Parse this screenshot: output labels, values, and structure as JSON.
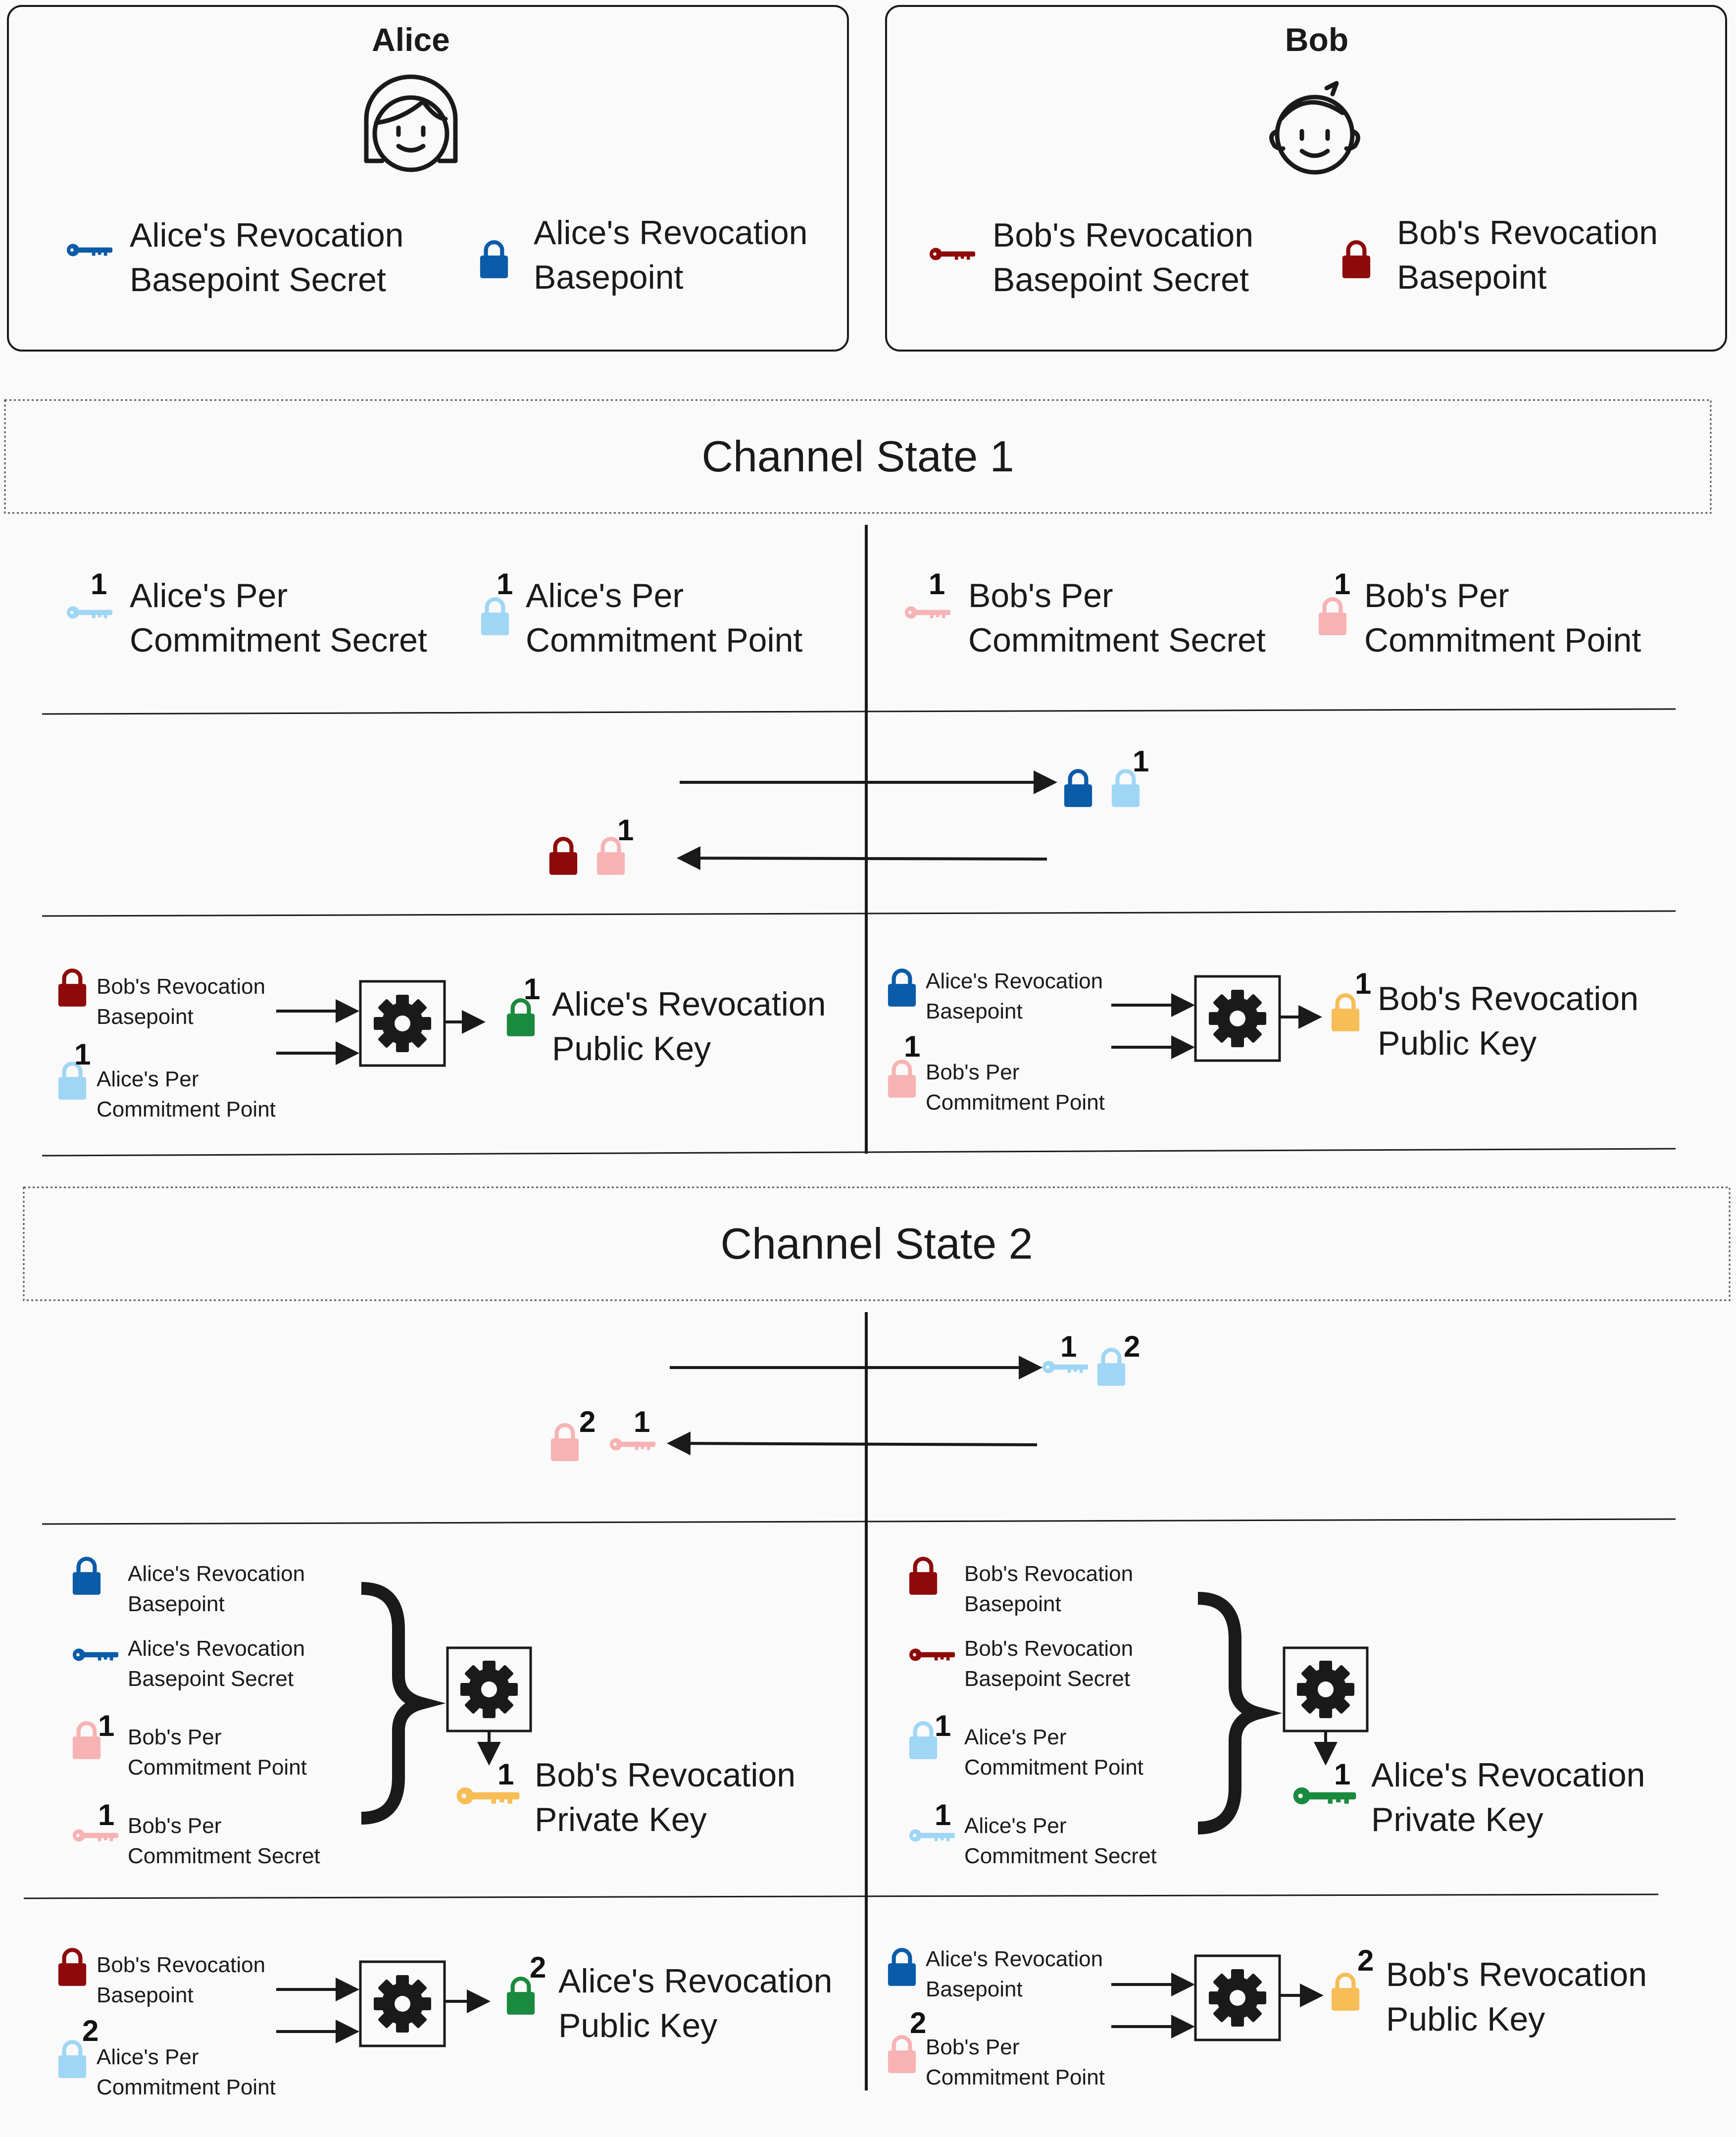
{
  "colors": {
    "alice_blue": "#0a5ba8",
    "alice_light": "#9fd6f5",
    "bob_red": "#8e0a0a",
    "bob_light": "#f7b3b3",
    "green": "#1a8a3e",
    "orange": "#f7bd56",
    "line": "#1a1a1a"
  },
  "alice": {
    "name": "Alice",
    "secret_label": "Alice's Revocation\nBasepoint Secret",
    "basepoint_label": "Alice's Revocation\nBasepoint"
  },
  "bob": {
    "name": "Bob",
    "secret_label": "Bob's Revocation\nBasepoint Secret",
    "basepoint_label": "Bob's Revocation\nBasepoint"
  },
  "state1": {
    "title": "Channel State 1",
    "alice_secret": {
      "num": "1",
      "label": "Alice's Per\nCommitment Secret"
    },
    "alice_point": {
      "num": "1",
      "label": "Alice's Per\nCommitment Point"
    },
    "bob_secret": {
      "num": "1",
      "label": "Bob's Per\nCommitment Secret"
    },
    "bob_point": {
      "num": "1",
      "label": "Bob's Per\nCommitment Point"
    },
    "exchange_right_num": "1",
    "exchange_left_num": "1",
    "alice_calc": {
      "in1": "Bob's Revocation\nBasepoint",
      "in2_num": "1",
      "in2": "Alice's Per\nCommitment Point",
      "out_num": "1",
      "out": "Alice's Revocation\nPublic Key"
    },
    "bob_calc": {
      "in1": "Alice's Revocation\nBasepoint",
      "in2_num": "1",
      "in2": "Bob's Per\nCommitment Point",
      "out_num": "1",
      "out": "Bob's Revocation\nPublic Key"
    }
  },
  "state2": {
    "title": "Channel State 2",
    "exchange_right": {
      "key_num": "1",
      "lock_num": "2"
    },
    "exchange_left": {
      "lock_num": "2",
      "key_num": "1"
    },
    "alice_priv": {
      "items": [
        {
          "num": "",
          "label": "Alice's Revocation\nBasepoint"
        },
        {
          "num": "",
          "label": "Alice's Revocation\nBasepoint Secret"
        },
        {
          "num": "1",
          "label": "Bob's Per\nCommitment Point"
        },
        {
          "num": "1",
          "label": "Bob's Per\nCommitment Secret"
        }
      ],
      "out_num": "1",
      "out": "Bob's Revocation\nPrivate Key"
    },
    "bob_priv": {
      "items": [
        {
          "num": "",
          "label": "Bob's Revocation\nBasepoint"
        },
        {
          "num": "",
          "label": "Bob's Revocation\nBasepoint Secret"
        },
        {
          "num": "1",
          "label": "Alice's Per\nCommitment Point"
        },
        {
          "num": "1",
          "label": "Alice's Per\nCommitment Secret"
        }
      ],
      "out_num": "1",
      "out": "Alice's Revocation\nPrivate Key"
    },
    "alice_calc": {
      "in1": "Bob's Revocation\nBasepoint",
      "in2_num": "2",
      "in2": "Alice's Per\nCommitment Point",
      "out_num": "2",
      "out": "Alice's Revocation\nPublic Key"
    },
    "bob_calc": {
      "in1": "Alice's Revocation\nBasepoint",
      "in2_num": "2",
      "in2": "Bob's Per\nCommitment Point",
      "out_num": "2",
      "out": "Bob's Revocation\nPublic Key"
    }
  }
}
